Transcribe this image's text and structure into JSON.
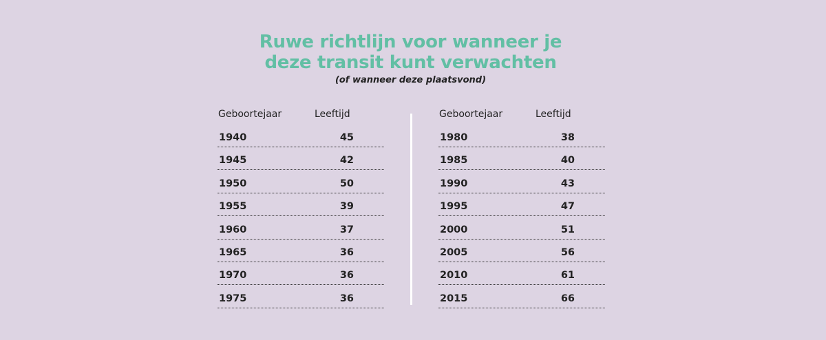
{
  "title_line1": "Ruwe richtlijn voor wanneer je",
  "title_line2": "deze transit kunt verwachten",
  "subtitle": "(of wanneer deze plaatsvond)",
  "colors": {
    "background": "#ddd4e3",
    "title": "#62bfa4"
  },
  "tables": [
    {
      "headers": [
        "Geboortejaar",
        "Leeftijd"
      ],
      "rows": [
        [
          "1940",
          "45"
        ],
        [
          "1945",
          "42"
        ],
        [
          "1950",
          "50"
        ],
        [
          "1955",
          "39"
        ],
        [
          "1960",
          "37"
        ],
        [
          "1965",
          "36"
        ],
        [
          "1970",
          "36"
        ],
        [
          "1975",
          "36"
        ]
      ]
    },
    {
      "headers": [
        "Geboortejaar",
        "Leeftijd"
      ],
      "rows": [
        [
          "1980",
          "38"
        ],
        [
          "1985",
          "40"
        ],
        [
          "1990",
          "43"
        ],
        [
          "1995",
          "47"
        ],
        [
          "2000",
          "51"
        ],
        [
          "2005",
          "56"
        ],
        [
          "2010",
          "61"
        ],
        [
          "2015",
          "66"
        ]
      ]
    }
  ]
}
